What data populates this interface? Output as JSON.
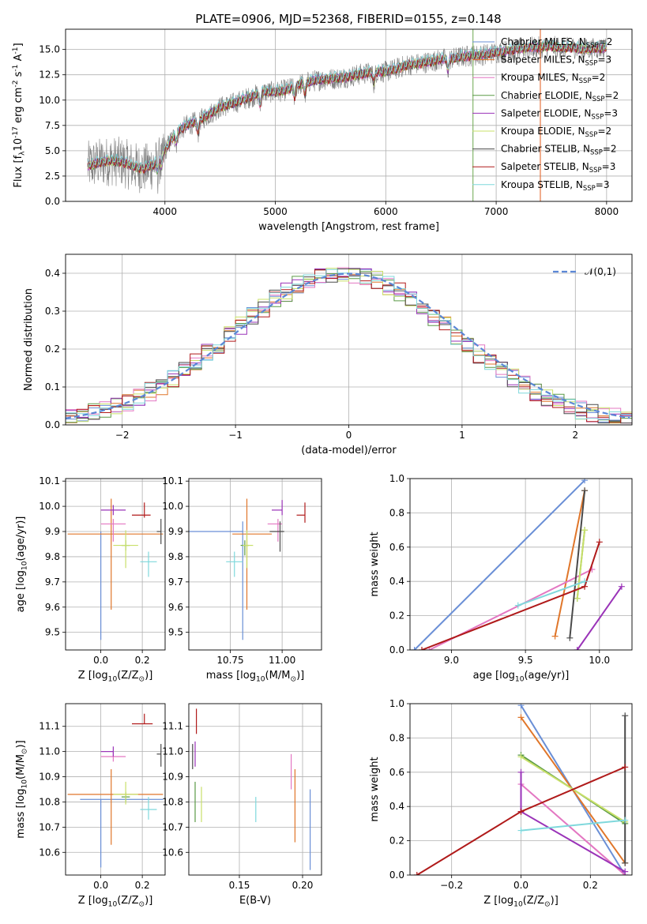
{
  "figure": {
    "title": "PLATE=0906, MJD=52368, FIBERID=0155, z=0.148"
  },
  "colors": {
    "grid": "#b0b0b0",
    "normal_curve": "#5b87d6",
    "data_gray": "#7f7f7f"
  },
  "series": [
    {
      "name": "Chabrier MILES, N$_{SSP}$=2",
      "label_main": "Chabrier MILES, N",
      "color": "#6a8fd6"
    },
    {
      "name": "Salpeter MILES, N$_{SSP}$=3",
      "label_main": "Salpeter MILES, N",
      "color": "#e0762a"
    },
    {
      "name": "Kroupa MILES, N$_{SSP}$=2",
      "label_main": "Kroupa MILES, N",
      "color": "#e377c2"
    },
    {
      "name": "Chabrier ELODIE, N$_{SSP}$=2",
      "label_main": "Chabrier ELODIE, N",
      "color": "#5a9a46"
    },
    {
      "name": "Salpeter ELODIE, N$_{SSP}$=3",
      "label_main": "Salpeter ELODIE, N",
      "color": "#9a33b8"
    },
    {
      "name": "Kroupa ELODIE, N$_{SSP}$=2",
      "label_main": "Kroupa ELODIE, N",
      "color": "#c9e06a"
    },
    {
      "name": "Chabrier STELIB, N$_{SSP}$=2",
      "label_main": "Chabrier STELIB, N",
      "color": "#4a4a4a"
    },
    {
      "name": "Salpeter STELIB, N$_{SSP}$=3",
      "label_main": "Salpeter STELIB, N",
      "color": "#b01a1a"
    },
    {
      "name": "Kroupa STELIB, N$_{SSP}$=3",
      "label_main": "Kroupa STELIB, N",
      "color": "#7fd8dc"
    }
  ],
  "chart_data": [
    {
      "id": "spectrum",
      "type": "line",
      "xlabel": "wavelength [Angstrom, rest frame]",
      "ylabel": "Flux [f$_\\lambda$10$^{-17}$ erg cm$^{-2}$ s$^{-1}$ A$^{-1}$]",
      "xlim": [
        3100,
        8230
      ],
      "ylim": [
        0,
        17
      ],
      "xticks": [
        4000,
        5000,
        6000,
        7000,
        8000
      ],
      "yticks": [
        0.0,
        2.5,
        5.0,
        7.5,
        10.0,
        12.5,
        15.0
      ],
      "legend_loc": "right",
      "continuum_x": [
        3300,
        3400,
        3500,
        3600,
        3700,
        3800,
        3900,
        4000,
        4100,
        4200,
        4300,
        4400,
        4500,
        4600,
        4700,
        4800,
        4900,
        5000,
        5100,
        5200,
        5300,
        5400,
        5500,
        5600,
        5700,
        5800,
        5900,
        6000,
        6100,
        6200,
        6300,
        6400,
        6500,
        6600,
        6700,
        6800,
        6900,
        7000,
        7100,
        7200,
        7300,
        7400,
        7500,
        7600,
        7700,
        7800,
        7900,
        8000
      ],
      "continuum_y": [
        3.5,
        3.8,
        4.0,
        3.9,
        3.5,
        3.2,
        3.6,
        5.0,
        6.8,
        7.5,
        7.9,
        8.6,
        9.3,
        9.6,
        10.0,
        10.4,
        10.8,
        10.8,
        11.0,
        11.5,
        11.8,
        12.0,
        12.1,
        12.2,
        12.4,
        12.6,
        12.8,
        12.8,
        13.1,
        13.5,
        13.6,
        13.8,
        14.0,
        14.1,
        14.3,
        14.4,
        14.5,
        14.7,
        14.9,
        15.0,
        15.2,
        15.2,
        15.3,
        15.1,
        15.2,
        15.0,
        15.1,
        15.2
      ],
      "vertical_spikes_x": [
        6790,
        7400
      ]
    },
    {
      "id": "residuals",
      "type": "histogram",
      "xlabel": "(data-model)/error",
      "ylabel": "Normed distribution",
      "xlim": [
        -2.5,
        2.5
      ],
      "ylim": [
        0,
        0.45
      ],
      "xticks": [
        -2,
        -1,
        0,
        1,
        2
      ],
      "yticks": [
        0.0,
        0.1,
        0.2,
        0.3,
        0.4
      ],
      "bin_width": 0.1,
      "bin_start": -2.5,
      "legend": "$\\mathcal{N}(0,1)$",
      "legend_loc": "upper right",
      "normal_mean": 0,
      "normal_sigma": 1
    },
    {
      "id": "age-vs-Z",
      "type": "scatter",
      "xlabel": "Z [log$_{10}$(Z/Z$_\\odot$)]",
      "ylabel": "age  [log$_{10}$($age/yr$)]",
      "xlim": [
        -0.17,
        0.31
      ],
      "ylim": [
        9.43,
        10.11
      ],
      "xticks": [
        0.0,
        0.2
      ],
      "yticks": [
        9.5,
        9.6,
        9.7,
        9.8,
        9.9,
        10.0,
        10.1
      ],
      "points": [
        {
          "x": 0.0,
          "y": 9.9,
          "xerr": [
            0.0,
            0.0
          ],
          "yerr": [
            0.43,
            0.0
          ]
        },
        {
          "x": 0.05,
          "y": 9.89,
          "xerr": [
            0.21,
            0.25
          ],
          "yerr": [
            0.3,
            0.14
          ]
        },
        {
          "x": 0.06,
          "y": 9.93,
          "xerr": [
            0.06,
            0.06
          ],
          "yerr": [
            0.07,
            0.02
          ]
        },
        {
          "x": 0.12,
          "y": 9.845,
          "xerr": [
            0.02,
            0.02
          ],
          "yerr": [
            0.02,
            0.02
          ]
        },
        {
          "x": 0.06,
          "y": 9.985,
          "xerr": [
            0.06,
            0.06
          ],
          "yerr": [
            0.02,
            0.02
          ]
        },
        {
          "x": 0.12,
          "y": 9.845,
          "xerr": [
            0.06,
            0.06
          ],
          "yerr": [
            0.09,
            0.06
          ]
        },
        {
          "x": 0.29,
          "y": 9.9,
          "xerr": [
            0.02,
            0.0
          ],
          "yerr": [
            0.05,
            0.05
          ]
        },
        {
          "x": 0.21,
          "y": 9.965,
          "xerr": [
            0.06,
            0.03
          ],
          "yerr": [
            0.01,
            0.05
          ]
        },
        {
          "x": 0.23,
          "y": 9.78,
          "xerr": [
            0.04,
            0.04
          ],
          "yerr": [
            0.06,
            0.04
          ]
        }
      ]
    },
    {
      "id": "age-vs-mass",
      "type": "scatter",
      "xlabel": "mass [log$_{10}$($M/M_\\odot$)]",
      "ylabel": "",
      "xlim": [
        10.55,
        11.19
      ],
      "ylim": [
        9.43,
        10.11
      ],
      "xticks": [
        10.75,
        11.0
      ],
      "yticks": [
        9.5,
        9.6,
        9.7,
        9.8,
        9.9,
        10.0,
        10.1
      ],
      "points": [
        {
          "x": 10.81,
          "y": 9.9,
          "xerr": [
            0.27,
            0.0
          ],
          "yerr": [
            0.43,
            0.04
          ]
        },
        {
          "x": 10.83,
          "y": 9.89,
          "xerr": [
            0.07,
            0.12
          ],
          "yerr": [
            0.3,
            0.14
          ]
        },
        {
          "x": 10.98,
          "y": 9.93,
          "xerr": [
            0.05,
            0.02
          ],
          "yerr": [
            0.07,
            0.02
          ]
        },
        {
          "x": 10.82,
          "y": 9.845,
          "xerr": [
            0.02,
            0.02
          ],
          "yerr": [
            0.04,
            0.02
          ]
        },
        {
          "x": 11.0,
          "y": 9.985,
          "xerr": [
            0.05,
            0.0
          ],
          "yerr": [
            0.02,
            0.04
          ]
        },
        {
          "x": 10.83,
          "y": 9.845,
          "xerr": [
            0.02,
            0.03
          ],
          "yerr": [
            0.09,
            0.06
          ]
        },
        {
          "x": 10.99,
          "y": 9.9,
          "xerr": [
            0.05,
            0.02
          ],
          "yerr": [
            0.08,
            0.04
          ]
        },
        {
          "x": 11.11,
          "y": 9.965,
          "xerr": [
            0.04,
            0.0
          ],
          "yerr": [
            0.03,
            0.05
          ]
        },
        {
          "x": 10.77,
          "y": 9.78,
          "xerr": [
            0.04,
            0.04
          ],
          "yerr": [
            0.06,
            0.04
          ]
        }
      ]
    },
    {
      "id": "massweight-vs-age",
      "type": "line",
      "xlabel": "age  [log$_{10}$($age/yr$)]",
      "ylabel": "mass weight",
      "xlim": [
        8.72,
        10.22
      ],
      "ylim": [
        0.0,
        1.0
      ],
      "xticks": [
        9.0,
        9.5,
        10.0
      ],
      "yticks": [
        0.0,
        0.2,
        0.4,
        0.6,
        0.8,
        1.0
      ],
      "series_points": [
        {
          "x": [
            8.75,
            9.9
          ],
          "y": [
            0.0,
            0.99
          ]
        },
        {
          "x": [
            9.7,
            9.9
          ],
          "y": [
            0.08,
            0.93
          ]
        },
        {
          "x": [
            8.85,
            9.95
          ],
          "y": [
            0.0,
            0.47
          ]
        },
        {
          "x": [
            9.85,
            9.9
          ],
          "y": [
            0.3,
            0.7
          ]
        },
        {
          "x": [
            9.85,
            10.15
          ],
          "y": [
            0.0,
            0.37
          ]
        },
        {
          "x": [
            9.85,
            9.9
          ],
          "y": [
            0.3,
            0.7
          ]
        },
        {
          "x": [
            9.8,
            9.9
          ],
          "y": [
            0.07,
            0.93
          ]
        },
        {
          "x": [
            8.8,
            9.9,
            10.0
          ],
          "y": [
            0.0,
            0.37,
            0.63
          ]
        },
        {
          "x": [
            9.45,
            9.9
          ],
          "y": [
            0.26,
            0.4
          ]
        }
      ]
    },
    {
      "id": "mass-vs-Z",
      "type": "scatter",
      "xlabel": "Z [log$_{10}$(Z/Z$_\\odot$)]",
      "ylabel": "mass [log$_{10}$($M/M_\\odot$)]",
      "xlim": [
        -0.17,
        0.31
      ],
      "ylim": [
        10.51,
        11.19
      ],
      "xticks": [
        0.0,
        0.2
      ],
      "yticks": [
        10.6,
        10.7,
        10.8,
        10.9,
        11.0,
        11.1
      ],
      "points": [
        {
          "x": 0.0,
          "y": 10.81,
          "xerr": [
            0.1,
            0.3
          ],
          "yerr": [
            0.27,
            0.0
          ]
        },
        {
          "x": 0.05,
          "y": 10.83,
          "xerr": [
            0.21,
            0.25
          ],
          "yerr": [
            0.2,
            0.1
          ]
        },
        {
          "x": 0.06,
          "y": 10.98,
          "xerr": [
            0.06,
            0.06
          ],
          "yerr": [
            0.02,
            0.02
          ]
        },
        {
          "x": 0.12,
          "y": 10.82,
          "xerr": [
            0.02,
            0.02
          ],
          "yerr": [
            0.02,
            0.02
          ]
        },
        {
          "x": 0.06,
          "y": 11.0,
          "xerr": [
            0.06,
            0.0
          ],
          "yerr": [
            0.02,
            0.02
          ]
        },
        {
          "x": 0.12,
          "y": 10.83,
          "xerr": [
            0.06,
            0.06
          ],
          "yerr": [
            0.04,
            0.05
          ]
        },
        {
          "x": 0.29,
          "y": 10.99,
          "xerr": [
            0.02,
            0.0
          ],
          "yerr": [
            0.05,
            0.04
          ]
        },
        {
          "x": 0.21,
          "y": 11.11,
          "xerr": [
            0.06,
            0.04
          ],
          "yerr": [
            0.0,
            0.04
          ]
        },
        {
          "x": 0.23,
          "y": 10.77,
          "xerr": [
            0.04,
            0.04
          ],
          "yerr": [
            0.04,
            0.05
          ]
        }
      ]
    },
    {
      "id": "mass-vs-EBV",
      "type": "scatter",
      "xlabel": "E(B-V)",
      "ylabel": "",
      "xlim": [
        0.11,
        0.215
      ],
      "ylim": [
        10.51,
        11.19
      ],
      "xticks": [
        0.15,
        0.2
      ],
      "yticks": [
        10.6,
        10.7,
        10.8,
        10.9,
        11.0,
        11.1
      ],
      "points": [
        {
          "x": 0.206,
          "y": 10.69,
          "xerr": [
            0,
            0
          ],
          "yerr": [
            0.16,
            0.16
          ]
        },
        {
          "x": 0.194,
          "y": 10.78,
          "xerr": [
            0,
            0
          ],
          "yerr": [
            0.14,
            0.15
          ]
        },
        {
          "x": 0.191,
          "y": 10.94,
          "xerr": [
            0,
            0
          ],
          "yerr": [
            0.09,
            0.05
          ]
        },
        {
          "x": 0.115,
          "y": 10.8,
          "xerr": [
            0,
            0
          ],
          "yerr": [
            0.08,
            0.08
          ]
        },
        {
          "x": 0.115,
          "y": 10.99,
          "xerr": [
            0,
            0
          ],
          "yerr": [
            0.05,
            0.05
          ]
        },
        {
          "x": 0.12,
          "y": 10.79,
          "xerr": [
            0,
            0
          ],
          "yerr": [
            0.07,
            0.07
          ]
        },
        {
          "x": 0.113,
          "y": 10.98,
          "xerr": [
            0,
            0
          ],
          "yerr": [
            0.05,
            0.05
          ]
        },
        {
          "x": 0.116,
          "y": 11.12,
          "xerr": [
            0,
            0
          ],
          "yerr": [
            0.05,
            0.05
          ]
        },
        {
          "x": 0.163,
          "y": 10.77,
          "xerr": [
            0,
            0
          ],
          "yerr": [
            0.05,
            0.05
          ]
        }
      ]
    },
    {
      "id": "massweight-vs-Z",
      "type": "line",
      "xlabel": "Z [log$_{10}$(Z/Z$_\\odot$)]",
      "ylabel": "mass weight",
      "xlim": [
        -0.32,
        0.32
      ],
      "ylim": [
        0.0,
        1.0
      ],
      "xticks": [
        -0.2,
        0.0,
        0.2
      ],
      "yticks": [
        0.0,
        0.2,
        0.4,
        0.6,
        0.8,
        1.0
      ],
      "series_points": [
        {
          "x": [
            0.0,
            0.3
          ],
          "y": [
            0.99,
            0.0
          ]
        },
        {
          "x": [
            0.0,
            0.3
          ],
          "y": [
            0.92,
            0.07
          ]
        },
        {
          "x": [
            0.0,
            0.3
          ],
          "y": [
            0.53,
            0.0
          ]
        },
        {
          "x": [
            0.0,
            0.3
          ],
          "y": [
            0.7,
            0.3
          ]
        },
        {
          "x": [
            0.0,
            0.0,
            0.3
          ],
          "y": [
            0.6,
            0.37,
            0.02
          ]
        },
        {
          "x": [
            0.0,
            0.3
          ],
          "y": [
            0.69,
            0.31
          ]
        },
        {
          "x": [
            0.3,
            0.3
          ],
          "y": [
            0.07,
            0.93
          ]
        },
        {
          "x": [
            -0.3,
            0.0,
            0.3
          ],
          "y": [
            0.0,
            0.37,
            0.63
          ]
        },
        {
          "x": [
            0.0,
            0.3
          ],
          "y": [
            0.26,
            0.32
          ]
        }
      ]
    }
  ]
}
